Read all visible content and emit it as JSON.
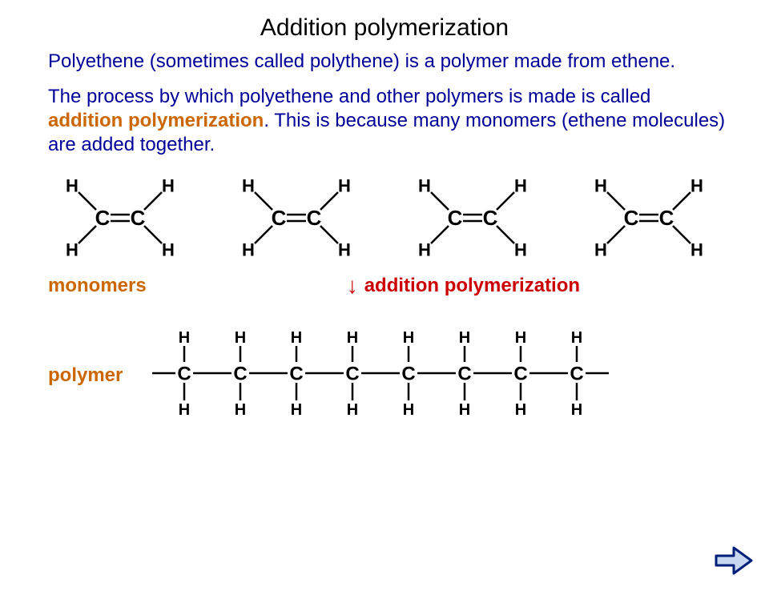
{
  "title": "Addition polymerization",
  "para1": "Polyethene (sometimes called polythene) is a polymer made from ethene.",
  "para2_a": "The process by which polyethene and other polymers is made is called ",
  "para2_hl": "addition polymerization",
  "para2_b": ". This is because many monomers (ethene molecules) are added together.",
  "label_monomers": "monomers",
  "label_addition": "addition polymerization",
  "label_polymer": "polymer",
  "arrow_glyph": "↓",
  "colors": {
    "title": "#000000",
    "body": "#000099",
    "orange": "#cc6600",
    "red": "#cc0000",
    "atom": "#000000",
    "bond": "#000000",
    "btn_fill": "#c8d8f0",
    "btn_stroke": "#001f7a"
  },
  "monomer": {
    "atoms": {
      "C": "C",
      "H": "H"
    },
    "count": 4,
    "font_size_C": 26,
    "font_size_H": 22,
    "bond_width": 2.5
  },
  "polymer": {
    "units": 8,
    "atoms": {
      "C": "C",
      "H": "H"
    },
    "font_size_C": 24,
    "font_size_H": 20,
    "bond_width": 2.5
  }
}
